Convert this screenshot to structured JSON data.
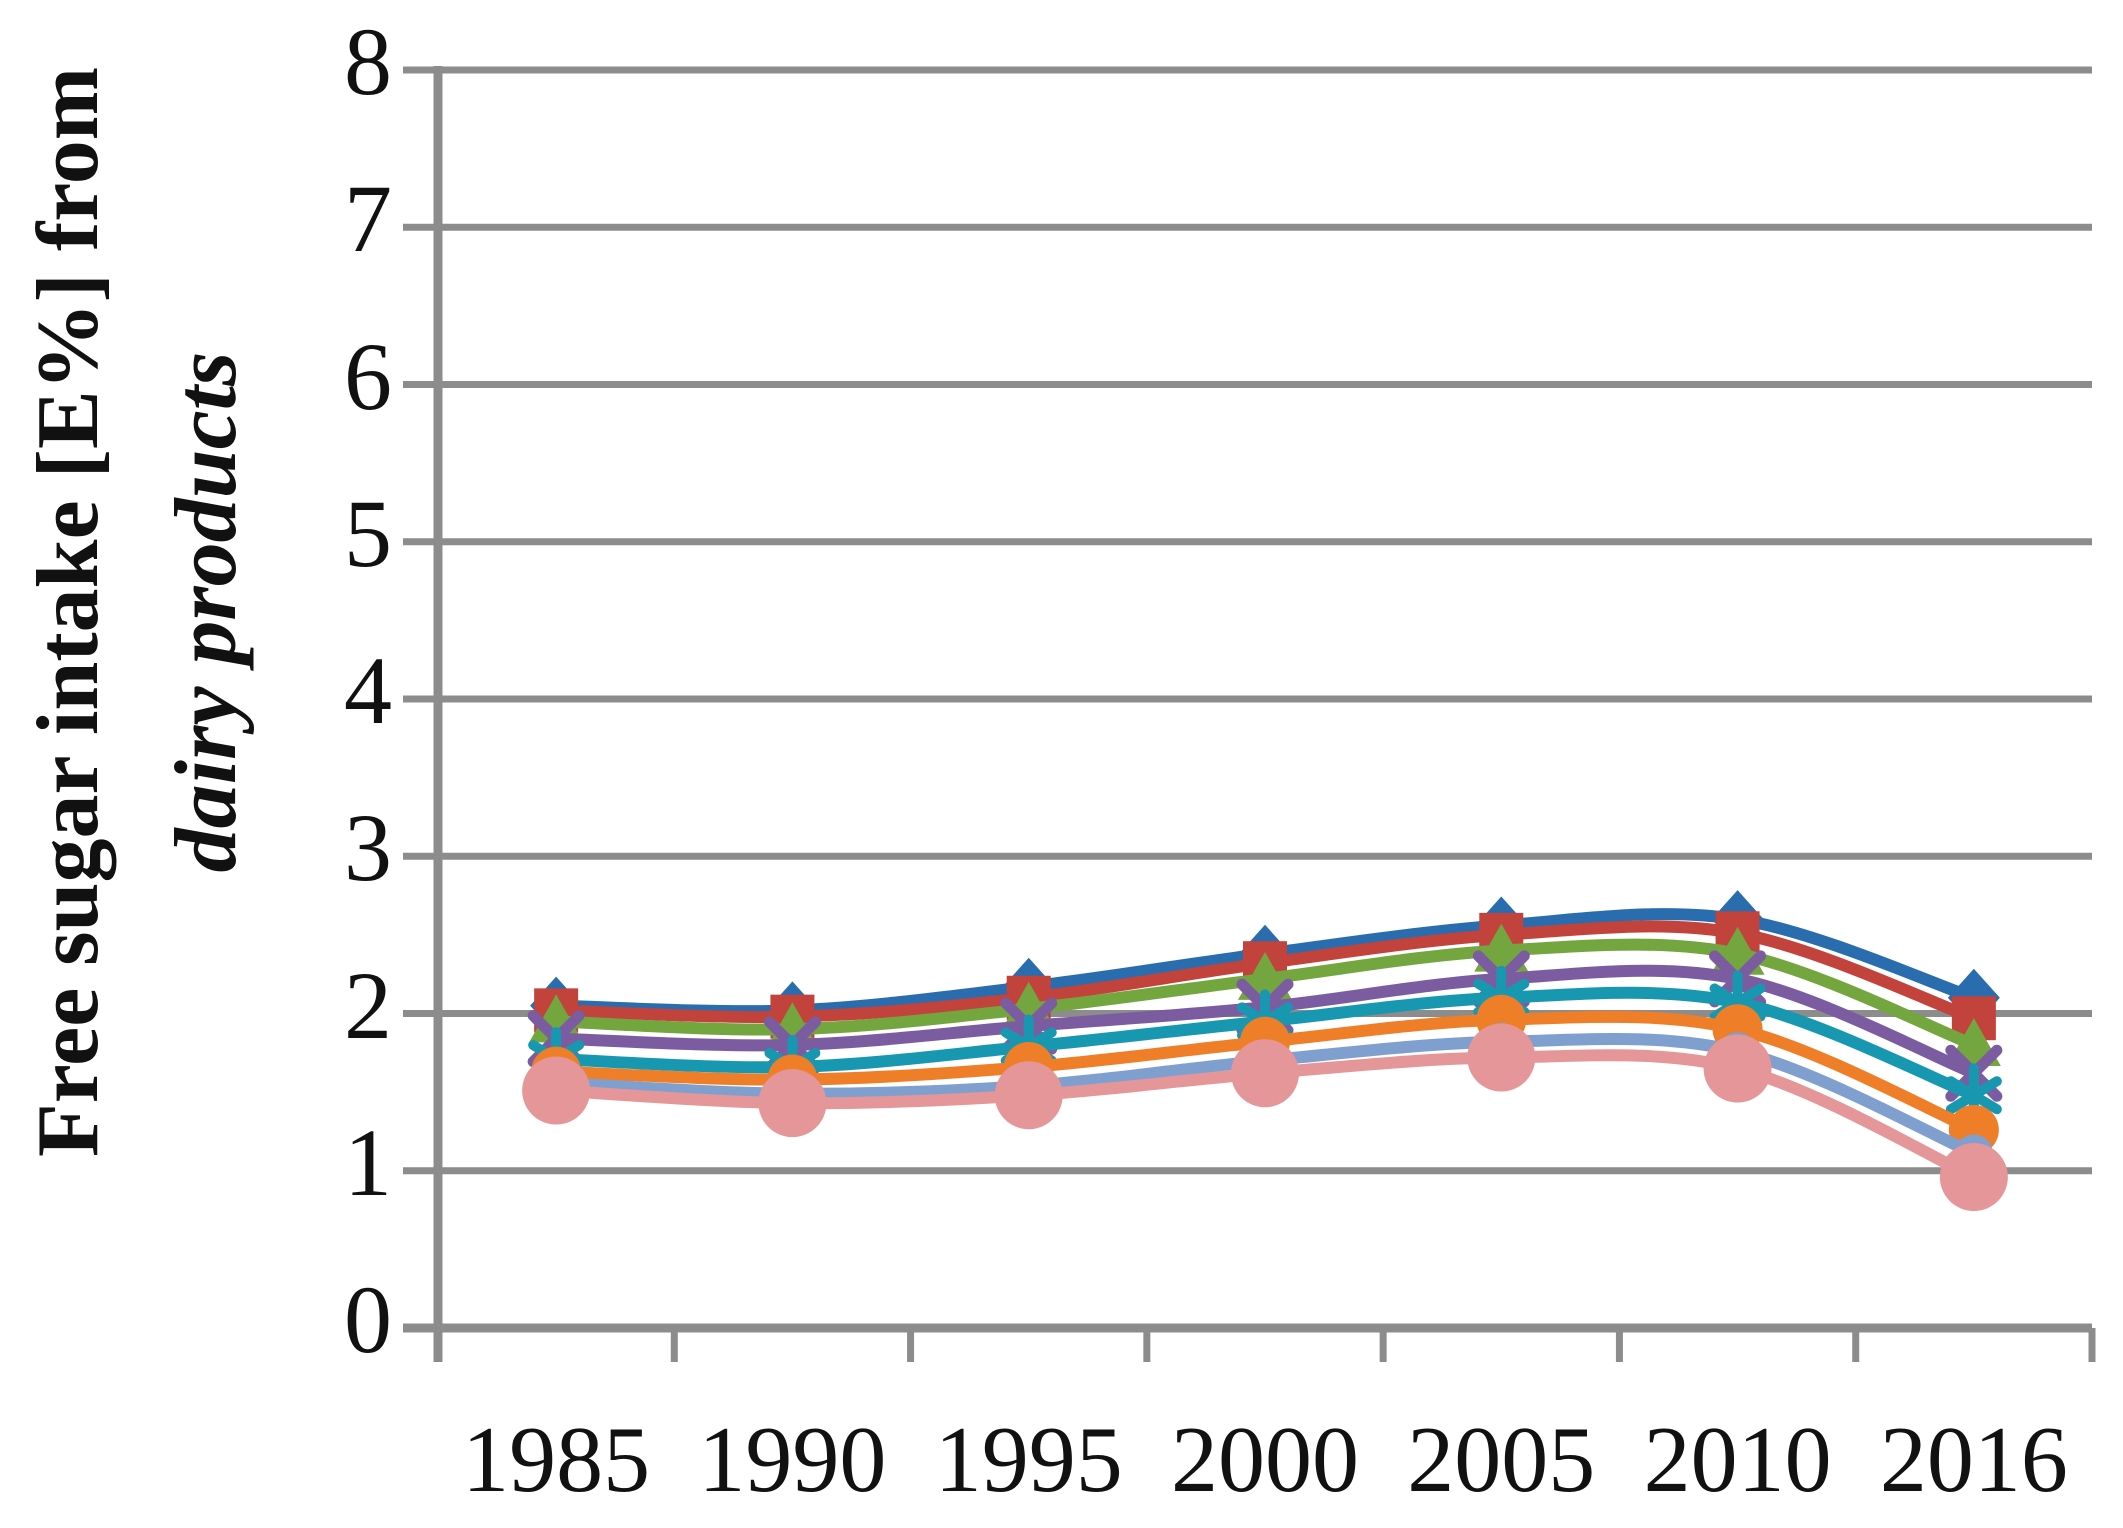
{
  "chart_data": {
    "type": "line",
    "title": "",
    "xlabel": "",
    "ylabel_line1": "Free sugar intake [E%] from",
    "ylabel_line2": "dairy products",
    "categories": [
      "1985",
      "1990",
      "1995",
      "2000",
      "2005",
      "2010",
      "2016"
    ],
    "y_ticks": [
      0,
      1,
      2,
      3,
      4,
      5,
      6,
      7,
      8
    ],
    "ylim": [
      0,
      8
    ],
    "grid": true,
    "legend_position": "none",
    "axis_color": "#8C8C8C",
    "series": [
      {
        "name": "series-1-blue",
        "color": "#2A6DAE",
        "marker": "diamond",
        "values": [
          2.05,
          2.02,
          2.17,
          2.38,
          2.56,
          2.6,
          2.1
        ]
      },
      {
        "name": "series-2-red",
        "color": "#C2423C",
        "marker": "square",
        "values": [
          2.02,
          1.98,
          2.1,
          2.32,
          2.5,
          2.51,
          1.97
        ]
      },
      {
        "name": "series-3-green",
        "color": "#74A63F",
        "marker": "triangle",
        "values": [
          1.95,
          1.9,
          2.03,
          2.22,
          2.4,
          2.38,
          1.8
        ]
      },
      {
        "name": "series-4-purple",
        "color": "#7B5CA1",
        "marker": "x",
        "values": [
          1.84,
          1.8,
          1.92,
          2.04,
          2.22,
          2.22,
          1.62
        ]
      },
      {
        "name": "series-5-teal",
        "color": "#1898B0",
        "marker": "asterisk",
        "values": [
          1.71,
          1.66,
          1.79,
          1.95,
          2.1,
          2.07,
          1.48
        ]
      },
      {
        "name": "series-6-orange",
        "color": "#EE7E28",
        "marker": "circle",
        "values": [
          1.63,
          1.58,
          1.66,
          1.82,
          1.96,
          1.9,
          1.26
        ]
      },
      {
        "name": "series-7-lightblue",
        "color": "#7FA0CE",
        "marker": "circle-small",
        "values": [
          1.56,
          1.49,
          1.54,
          1.7,
          1.82,
          1.76,
          1.11
        ]
      },
      {
        "name": "series-8-pink",
        "color": "#E49698",
        "marker": "circle-large",
        "values": [
          1.51,
          1.43,
          1.48,
          1.62,
          1.72,
          1.65,
          0.96
        ]
      }
    ]
  }
}
